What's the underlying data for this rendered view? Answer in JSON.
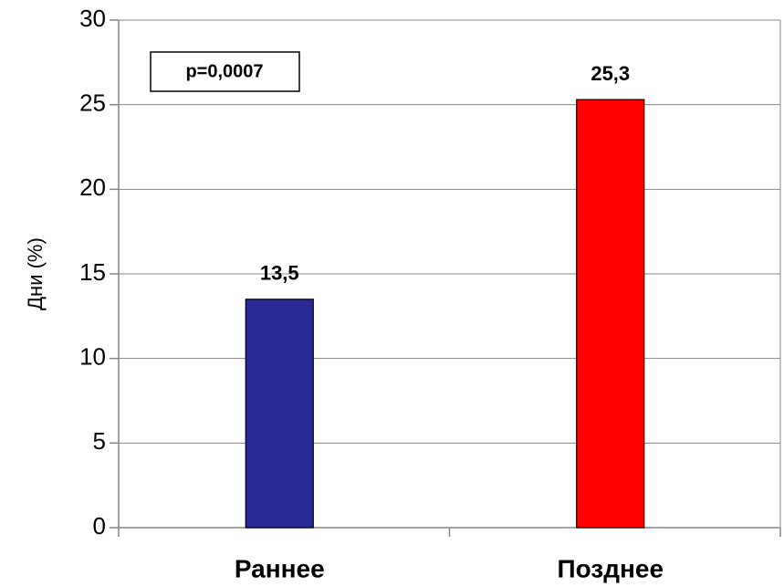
{
  "chart_data": {
    "type": "bar",
    "y_label": "Дни (%)",
    "annotation": "p=0,0007",
    "categories": [
      "Раннее",
      "Позднее"
    ],
    "values": [
      13.5,
      25.3
    ],
    "value_labels": [
      "13,5",
      "25,3"
    ],
    "colors": [
      "#2a2a96",
      "#ff0000"
    ],
    "ylim": [
      0,
      30
    ],
    "yticks": [
      0,
      5,
      10,
      15,
      20,
      25,
      30
    ],
    "grid": true
  }
}
